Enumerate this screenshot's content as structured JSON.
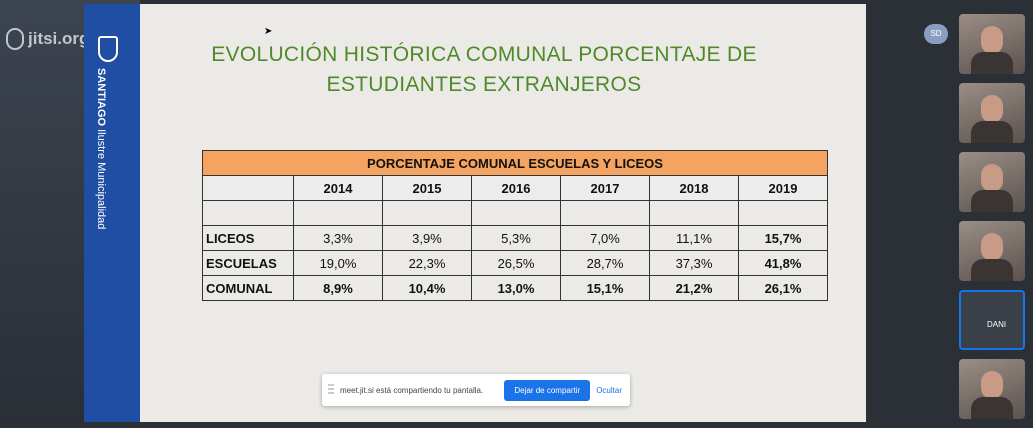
{
  "app": {
    "logo_text": "jitsi.org"
  },
  "brand": {
    "city": "SANTIAGO",
    "org": "Ilustre Municipalidad"
  },
  "slide": {
    "title_line1": "EVOLUCIÓN HISTÓRICA COMUNAL PORCENTAJE DE",
    "title_line2": "ESTUDIANTES EXTRANJEROS",
    "table": {
      "header": "PORCENTAJE COMUNAL ESCUELAS Y LICEOS",
      "years": [
        "2014",
        "2015",
        "2016",
        "2017",
        "2018",
        "2019"
      ],
      "rows": [
        {
          "label": "LICEOS",
          "values": [
            "3,3%",
            "3,9%",
            "5,3%",
            "7,0%",
            "11,1%",
            "15,7%"
          ]
        },
        {
          "label": "ESCUELAS",
          "values": [
            "19,0%",
            "22,3%",
            "26,5%",
            "28,7%",
            "37,3%",
            "41,8%"
          ]
        },
        {
          "label": "COMUNAL",
          "values": [
            "8,9%",
            "10,4%",
            "13,0%",
            "15,1%",
            "21,2%",
            "26,1%"
          ]
        }
      ]
    }
  },
  "share_bar": {
    "text": "meet.jit.si está compartiendo tu pantalla.",
    "stop_label": "Dejar de compartir",
    "hide_label": "Ocultar"
  },
  "participants": {
    "badge": "SD",
    "active_name": "DANI"
  }
}
